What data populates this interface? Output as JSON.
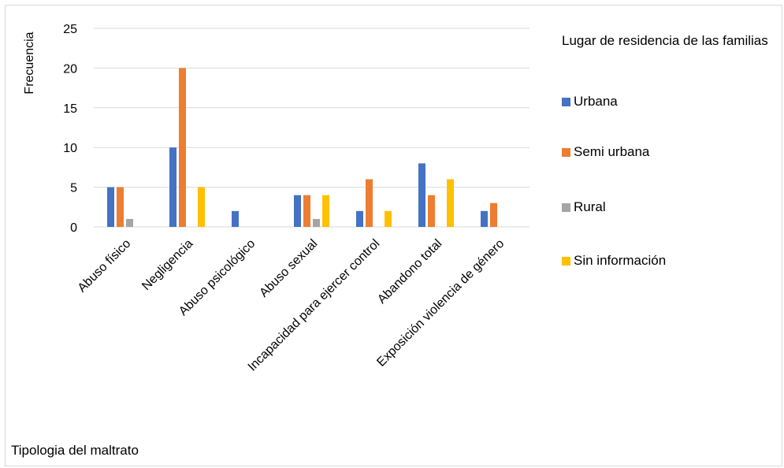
{
  "chart_data": {
    "type": "bar",
    "ylabel": "Frecuencia",
    "xlabel": "Tipologia del maltrato",
    "ylim": [
      0,
      25
    ],
    "yticks": [
      0,
      5,
      10,
      15,
      20,
      25
    ],
    "grid": true,
    "legend_title": "Lugar de residencia de las familias",
    "legend_placement": "right",
    "categories": [
      "Abuso físico",
      "Negligencia",
      "Abuso psicológico",
      "Abuso sexual",
      "Incapacidad para ejercer control",
      "Abandono total",
      "Exposición violencia de género"
    ],
    "series": [
      {
        "name": "Urbana",
        "color": "#4472c4",
        "values": [
          5,
          10,
          2,
          4,
          2,
          8,
          2
        ]
      },
      {
        "name": "Semi urbana",
        "color": "#ed7d31",
        "values": [
          5,
          20,
          0,
          4,
          6,
          4,
          3
        ]
      },
      {
        "name": "Rural",
        "color": "#a5a5a5",
        "values": [
          1,
          0,
          0,
          1,
          0,
          0,
          0
        ]
      },
      {
        "name": "Sin información",
        "color": "#ffc000",
        "values": [
          0,
          5,
          0,
          4,
          2,
          6,
          0
        ]
      }
    ]
  }
}
